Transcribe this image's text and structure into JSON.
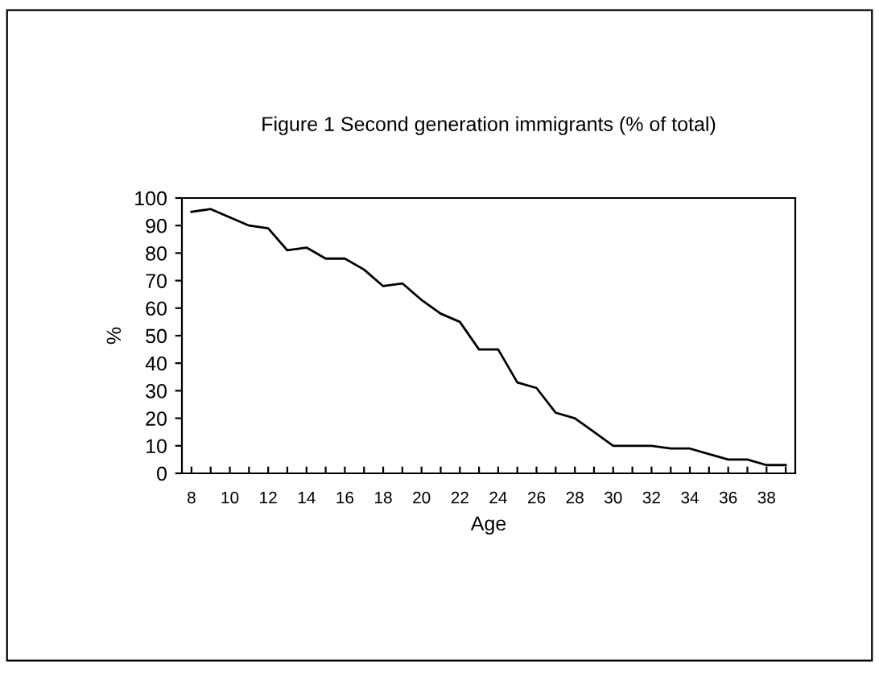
{
  "chart_data": {
    "type": "line",
    "title": "Figure 1 Second generation immigrants (% of total)",
    "xlabel": "Age",
    "ylabel": "%",
    "x": [
      8,
      9,
      10,
      11,
      12,
      13,
      14,
      15,
      16,
      17,
      18,
      19,
      20,
      21,
      22,
      23,
      24,
      25,
      26,
      27,
      28,
      29,
      30,
      31,
      32,
      33,
      34,
      35,
      36,
      37,
      38,
      39
    ],
    "series": [
      {
        "color": "#000000",
        "values": [
          95,
          96,
          93,
          90,
          89,
          81,
          82,
          78,
          78,
          74,
          68,
          69,
          63,
          58,
          55,
          45,
          45,
          33,
          31,
          22,
          20,
          15,
          10,
          10,
          10,
          9,
          9,
          7,
          5,
          5,
          3,
          3
        ]
      }
    ],
    "xlim": [
      7.5,
      39.5
    ],
    "xticks": [
      8,
      {
        "value": 9,
        "label": null
      },
      10,
      {
        "value": 11,
        "label": null
      },
      12,
      {
        "value": 13,
        "label": null
      },
      14,
      {
        "value": 15,
        "label": null
      },
      16,
      {
        "value": 17,
        "label": null
      },
      18,
      {
        "value": 19,
        "label": null
      },
      20,
      {
        "value": 21,
        "label": null
      },
      22,
      {
        "value": 23,
        "label": null
      },
      24,
      {
        "value": 25,
        "label": null
      },
      26,
      {
        "value": 27,
        "label": null
      },
      28,
      {
        "value": 29,
        "label": null
      },
      30,
      {
        "value": 31,
        "label": null
      },
      32,
      {
        "value": 33,
        "label": null
      },
      34,
      {
        "value": 35,
        "label": null
      },
      36,
      {
        "value": 37,
        "label": null
      },
      38,
      {
        "value": 39,
        "label": null
      }
    ],
    "ylim": [
      0,
      100
    ],
    "yticks": [
      0,
      10,
      20,
      30,
      40,
      50,
      60,
      70,
      80,
      90,
      100
    ],
    "grid": false,
    "legend": false,
    "marker": "none",
    "line_style": "solid"
  }
}
